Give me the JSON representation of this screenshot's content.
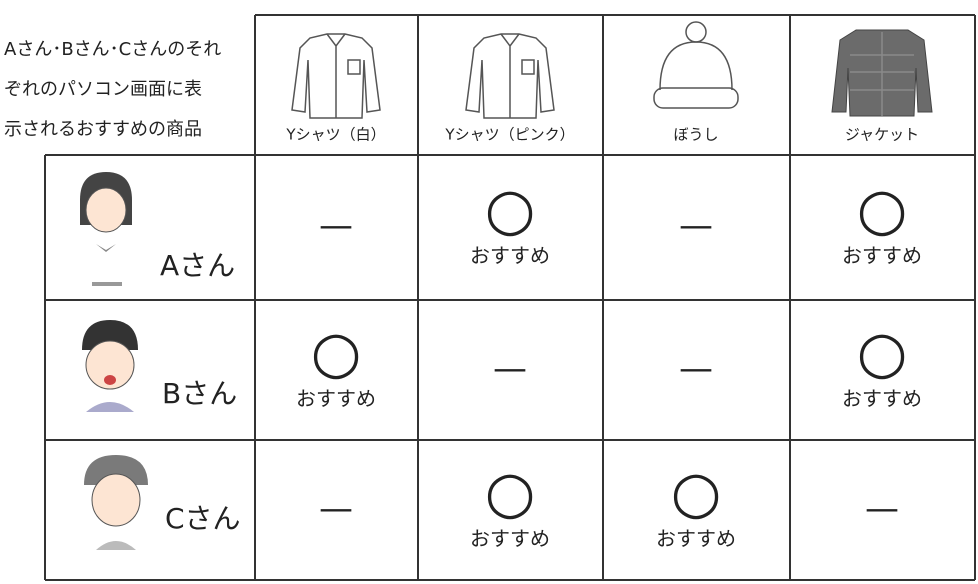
{
  "header": {
    "title_lines": [
      "Aさん･Bさん･Cさんのそれ",
      "ぞれのパソコン画面に表",
      "示されるおすすめの商品"
    ]
  },
  "table": {
    "columns": [
      "Yシャツ（白）",
      "Yシャツ（ピンク）",
      "ぼうし",
      "ジャケット"
    ],
    "rows": [
      {
        "name": "Aさん",
        "cells": [
          [
            "—"
          ],
          [
            "○",
            "おすすめ"
          ],
          [
            "—"
          ],
          [
            "○",
            "おすすめ"
          ]
        ]
      },
      {
        "name": "Bさん",
        "cells": [
          [
            "○",
            "おすすめ"
          ],
          [
            "—"
          ],
          [
            "—"
          ],
          [
            "○",
            "おすすめ"
          ]
        ]
      },
      {
        "name": "Cさん",
        "cells": [
          [
            "—"
          ],
          [
            "○",
            "おすすめ"
          ],
          [
            "○",
            "おすすめ"
          ],
          [
            "—"
          ]
        ]
      }
    ]
  }
}
